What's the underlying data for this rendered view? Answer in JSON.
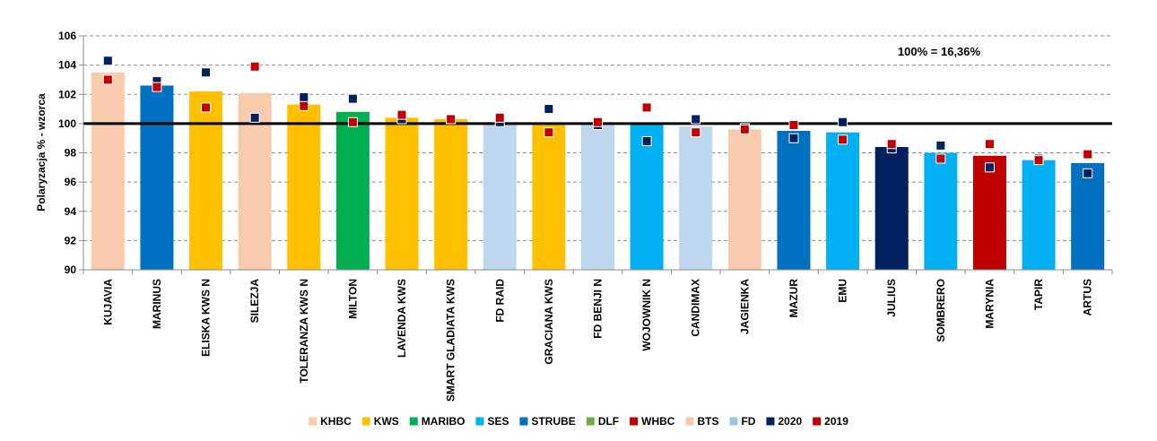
{
  "chart_data": {
    "type": "bar",
    "ylabel": "Polaryzacja % - wzorca",
    "ylim": [
      90,
      106
    ],
    "yticks": [
      90,
      92,
      94,
      96,
      98,
      100,
      102,
      104,
      106
    ],
    "reference_line": 100,
    "annotation": "100% = 16,36%",
    "grid": true,
    "legend_position": "bottom",
    "categories": [
      "KUJAVIA",
      "MARINUS",
      "ELISKA KWS N",
      "SILEZJA",
      "TOLERANZA KWS N",
      "MILTON",
      "LAVENDA KWS",
      "SMART GLADIATA KWS",
      "FD RAID",
      "GRACIANA KWS",
      "FD BENJI N",
      "WOJOWNIK N",
      "CANDIMAX",
      "JAGIENKA",
      "MAZUR",
      "EMU",
      "JULIUS",
      "SOMBRERO",
      "MARYNIA",
      "TAPIR",
      "ARTUS"
    ],
    "bar_values": [
      103.5,
      102.6,
      102.2,
      102.1,
      101.3,
      100.8,
      100.4,
      100.3,
      100.1,
      100.0,
      100.0,
      100.0,
      99.8,
      99.6,
      99.5,
      99.4,
      98.4,
      98.0,
      97.8,
      97.5,
      97.3
    ],
    "bar_colors": [
      "#f8cbad",
      "#0070c0",
      "#ffc000",
      "#f8cbad",
      "#ffc000",
      "#00b050",
      "#ffc000",
      "#ffc000",
      "#bdd7ee",
      "#ffc000",
      "#bdd7ee",
      "#00b0f0",
      "#bdd7ee",
      "#f8cbad",
      "#0070c0",
      "#00b0f0",
      "#002060",
      "#00b0f0",
      "#c00000",
      "#00b0f0",
      "#0070c0"
    ],
    "series": [
      {
        "name": "2020",
        "color": "#002060",
        "values": [
          104.3,
          102.9,
          103.5,
          100.4,
          101.8,
          101.7,
          100.3,
          100.3,
          100.1,
          101.0,
          99.9,
          98.8,
          100.3,
          99.7,
          99.0,
          100.1,
          98.3,
          98.5,
          97.0,
          97.6,
          96.6
        ]
      },
      {
        "name": "2019",
        "color": "#c00000",
        "values": [
          103.0,
          102.5,
          101.1,
          103.9,
          101.2,
          100.1,
          100.6,
          100.3,
          100.4,
          99.4,
          100.1,
          101.1,
          99.4,
          99.6,
          99.9,
          98.9,
          98.6,
          97.6,
          98.6,
          97.5,
          97.9
        ]
      }
    ],
    "legend": [
      {
        "label": "KHBC",
        "color": "#f8cbad"
      },
      {
        "label": "KWS",
        "color": "#ffc000"
      },
      {
        "label": "MARIBO",
        "color": "#00b050"
      },
      {
        "label": "SES",
        "color": "#00b0f0"
      },
      {
        "label": "STRUBE",
        "color": "#0070c0"
      },
      {
        "label": "DLF",
        "color": "#70ad47"
      },
      {
        "label": "WHBC",
        "color": "#c00000"
      },
      {
        "label": "BTS",
        "color": "#f8cbad"
      },
      {
        "label": "FD",
        "color": "#9dc3e6"
      },
      {
        "label": "2020",
        "color": "#002060"
      },
      {
        "label": "2019",
        "color": "#c00000"
      }
    ]
  }
}
